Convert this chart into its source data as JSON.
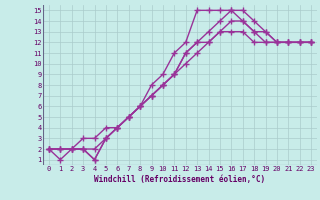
{
  "background_color": "#c8ece9",
  "grid_color": "#aacccc",
  "line_color": "#993399",
  "marker": "+",
  "markersize": 4,
  "linewidth": 1.0,
  "markeredgewidth": 1.0,
  "xlim": [
    -0.5,
    23.5
  ],
  "ylim": [
    0.5,
    15.5
  ],
  "xticks": [
    0,
    1,
    2,
    3,
    4,
    5,
    6,
    7,
    8,
    9,
    10,
    11,
    12,
    13,
    14,
    15,
    16,
    17,
    18,
    19,
    20,
    21,
    22,
    23
  ],
  "yticks": [
    1,
    2,
    3,
    4,
    5,
    6,
    7,
    8,
    9,
    10,
    11,
    12,
    13,
    14,
    15
  ],
  "xlabel": "Windchill (Refroidissement éolien,°C)",
  "series": [
    {
      "x": [
        0,
        1,
        2,
        3,
        4,
        5,
        6,
        7,
        8,
        9,
        10,
        11,
        12,
        13,
        14,
        15,
        16,
        17,
        18,
        19,
        20,
        21,
        22,
        23
      ],
      "y": [
        2,
        1,
        2,
        2,
        1,
        3,
        4,
        5,
        6,
        7,
        8,
        9,
        10,
        11,
        12,
        13,
        13,
        13,
        12,
        12,
        12,
        12,
        12,
        12
      ]
    },
    {
      "x": [
        0,
        1,
        2,
        3,
        4,
        5,
        6,
        7,
        8,
        9,
        10,
        11,
        12,
        13,
        14,
        15,
        16,
        17,
        18,
        19,
        20,
        21,
        22,
        23
      ],
      "y": [
        2,
        2,
        2,
        3,
        3,
        4,
        4,
        5,
        6,
        7,
        8,
        9,
        11,
        12,
        12,
        13,
        14,
        14,
        13,
        12,
        12,
        12,
        12,
        12
      ]
    },
    {
      "x": [
        0,
        1,
        2,
        3,
        4,
        5,
        6,
        7,
        8,
        9,
        10,
        11,
        12,
        13,
        14,
        15,
        16,
        17,
        18,
        19,
        20,
        21,
        22,
        23
      ],
      "y": [
        2,
        2,
        2,
        2,
        2,
        3,
        4,
        5,
        6,
        7,
        8,
        9,
        11,
        12,
        13,
        14,
        15,
        15,
        14,
        13,
        12,
        12,
        12,
        12
      ]
    },
    {
      "x": [
        0,
        1,
        2,
        3,
        4,
        5,
        6,
        7,
        8,
        9,
        10,
        11,
        12,
        13,
        14,
        15,
        16,
        17,
        18,
        19,
        20,
        21,
        22,
        23
      ],
      "y": [
        2,
        2,
        2,
        2,
        1,
        3,
        4,
        5,
        6,
        8,
        9,
        11,
        12,
        15,
        15,
        15,
        15,
        14,
        13,
        13,
        12,
        12,
        12,
        12
      ]
    }
  ]
}
